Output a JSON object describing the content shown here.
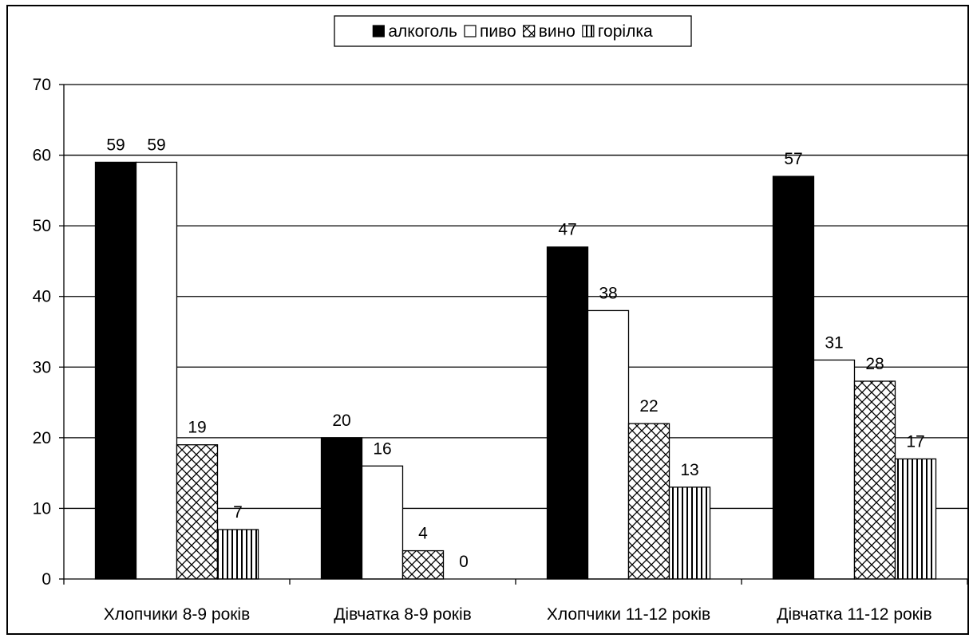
{
  "chart_data": {
    "type": "bar",
    "categories": [
      "Хлопчики 8-9 років",
      "Дівчатка 8-9 років",
      "Хлопчики 11-12 років",
      "Дівчатка 11-12 років"
    ],
    "series": [
      {
        "name": "алкоголь",
        "values": [
          59,
          20,
          47,
          57
        ],
        "fill": "solid-black"
      },
      {
        "name": "пиво",
        "values": [
          59,
          16,
          38,
          31
        ],
        "fill": "white"
      },
      {
        "name": "вино",
        "values": [
          19,
          4,
          22,
          28
        ],
        "fill": "crosshatch"
      },
      {
        "name": "горілка",
        "values": [
          7,
          0,
          13,
          17
        ],
        "fill": "vertical-stripes"
      }
    ],
    "title": "",
    "xlabel": "",
    "ylabel": "",
    "ylim": [
      0,
      70
    ],
    "yticks": [
      0,
      10,
      20,
      30,
      40,
      50,
      60,
      70
    ],
    "grid": "horizontal",
    "legend": "top-center",
    "data_labels": true,
    "colors": {
      "bar_black": "#000000",
      "bar_white": "#ffffff",
      "stroke": "#000000"
    }
  }
}
